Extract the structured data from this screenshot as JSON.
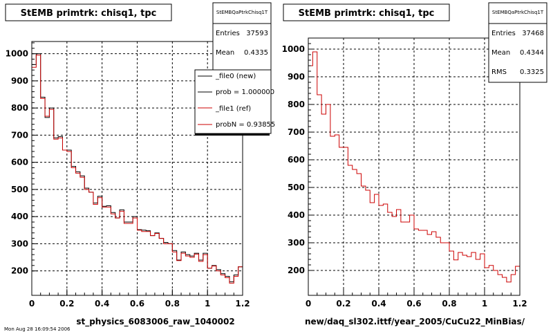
{
  "chart_data": [
    {
      "type": "histogram",
      "title": "StEMB primtrk: chisq1, tpc",
      "xlabel": "st_physics_6083006_raw_1040002",
      "ylabel": "",
      "xlim": [
        0,
        1.2
      ],
      "ylim": [
        110,
        1045
      ],
      "x_ticks": [
        "0",
        "0.2",
        "0.4",
        "0.6",
        "0.8",
        "1",
        "1.2"
      ],
      "y_ticks": [
        "200",
        "300",
        "400",
        "500",
        "600",
        "700",
        "800",
        "900",
        "1000"
      ],
      "grid": true,
      "stats": {
        "name": "StEMBQaPtrkChisq1T",
        "rows": [
          {
            "label": "Entries",
            "value": "37593"
          },
          {
            "label": "Mean",
            "value": "0.4335"
          }
        ]
      },
      "legend": {
        "position": "top-right",
        "entries": [
          {
            "label": "_file0 (new)",
            "color": "#000000"
          },
          {
            "label": "prob = 1.000000",
            "color": "#000000"
          },
          {
            "label": "_file1 (ref)",
            "color": "#cc0000"
          },
          {
            "label": "probN = 0.93855",
            "color": "#cc0000"
          }
        ]
      },
      "bin_edges": [
        0,
        1.2,
        48
      ],
      "series": [
        {
          "name": "_file0 (new)",
          "color": "#000000",
          "values": [
            960,
            1000,
            840,
            765,
            800,
            690,
            695,
            645,
            645,
            585,
            565,
            550,
            505,
            490,
            450,
            475,
            438,
            440,
            415,
            395,
            425,
            380,
            380,
            400,
            352,
            350,
            348,
            330,
            340,
            320,
            305,
            300,
            275,
            240,
            270,
            260,
            255,
            265,
            240,
            265,
            210,
            220,
            205,
            190,
            180,
            160,
            185,
            215
          ]
        },
        {
          "name": "_file1 (ref)",
          "color": "#cc0000",
          "values": [
            950,
            995,
            835,
            770,
            795,
            685,
            690,
            645,
            640,
            580,
            560,
            545,
            500,
            490,
            445,
            470,
            435,
            435,
            410,
            395,
            420,
            375,
            375,
            395,
            350,
            345,
            345,
            330,
            338,
            320,
            300,
            300,
            270,
            238,
            265,
            255,
            250,
            262,
            235,
            260,
            210,
            218,
            200,
            185,
            175,
            155,
            180,
            215
          ]
        }
      ]
    },
    {
      "type": "histogram",
      "title": "StEMB primtrk: chisq1, tpc",
      "xlabel": "new/daq_sl302.ittf/year_2005/CuCu22_MinBias/",
      "ylabel": "",
      "xlim": [
        0,
        1.2
      ],
      "ylim": [
        110,
        1040
      ],
      "x_ticks": [
        "0",
        "0.2",
        "0.4",
        "0.6",
        "0.8",
        "1",
        "1.2"
      ],
      "y_ticks": [
        "200",
        "300",
        "400",
        "500",
        "600",
        "700",
        "800",
        "900",
        "1000"
      ],
      "grid": true,
      "stats": {
        "name": "StEMBQaPtrkChisq1T",
        "rows": [
          {
            "label": "Entries",
            "value": "37468"
          },
          {
            "label": "Mean",
            "value": "0.4344"
          },
          {
            "label": "RMS",
            "value": "0.3325"
          }
        ]
      },
      "bin_edges": [
        0,
        1.2,
        48
      ],
      "series": [
        {
          "name": "",
          "color": "#cc0000",
          "values": [
            940,
            990,
            835,
            765,
            800,
            685,
            690,
            645,
            645,
            580,
            565,
            550,
            505,
            490,
            445,
            475,
            435,
            440,
            410,
            395,
            420,
            375,
            375,
            400,
            350,
            345,
            345,
            330,
            340,
            320,
            300,
            300,
            270,
            238,
            265,
            255,
            250,
            265,
            240,
            260,
            210,
            218,
            200,
            185,
            175,
            158,
            185,
            215
          ]
        }
      ]
    }
  ],
  "footer_text": "Mon Aug 28 16:09:54 2006"
}
